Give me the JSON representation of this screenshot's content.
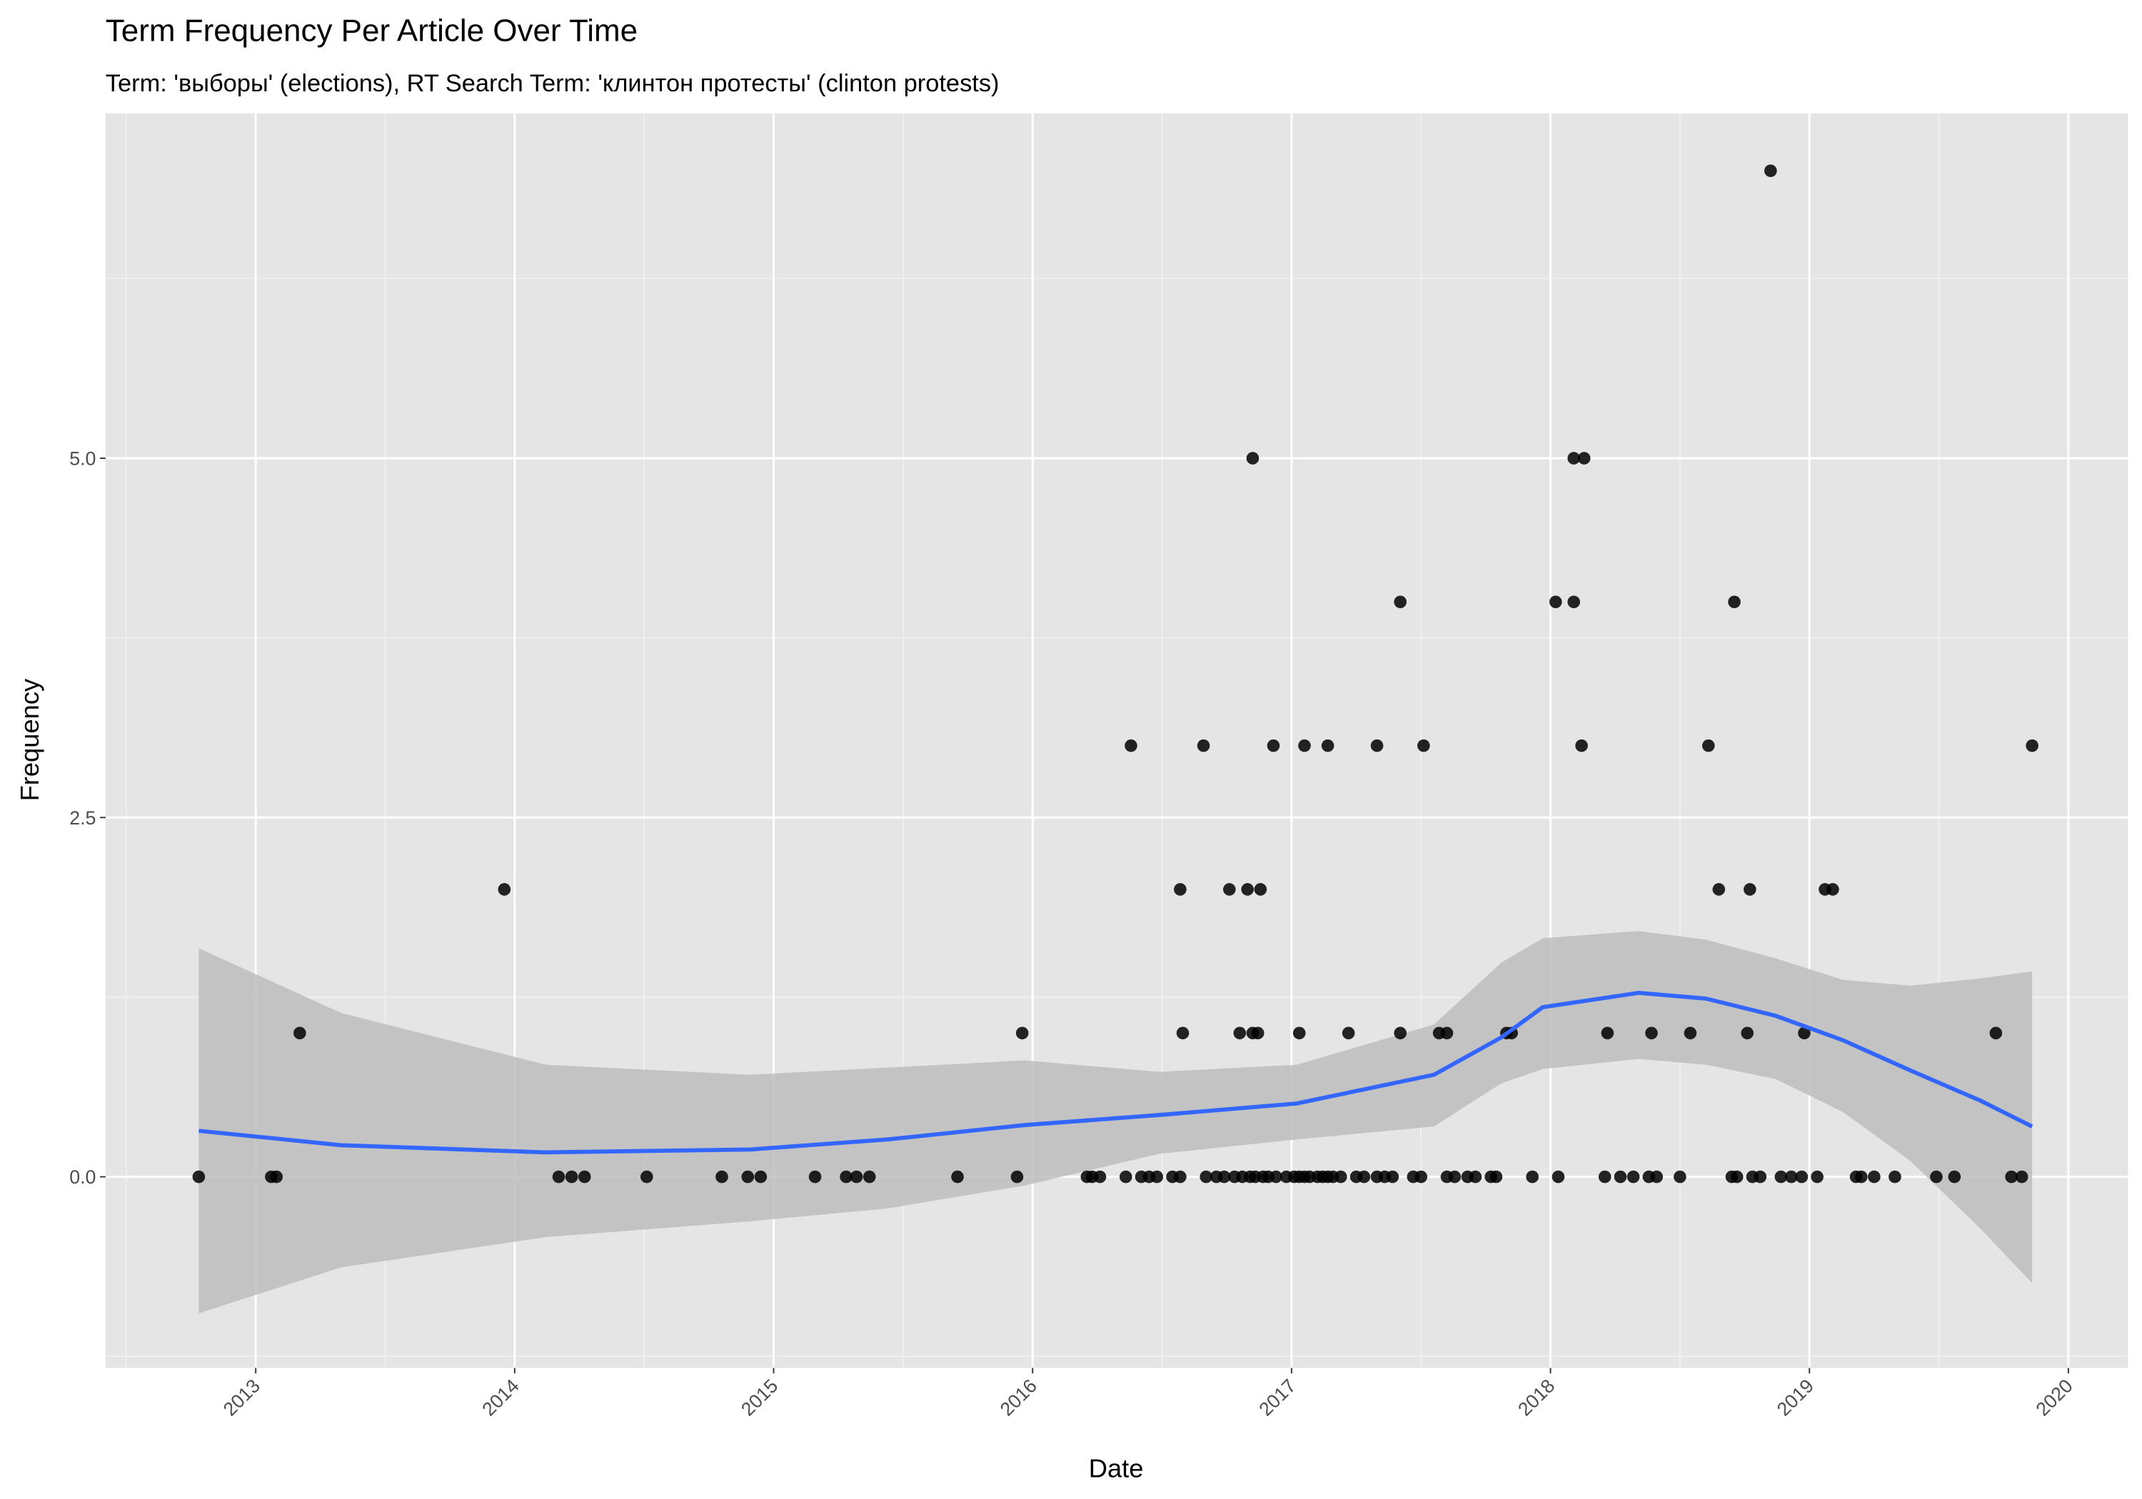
{
  "chart_data": {
    "type": "scatter",
    "title": "Term Frequency Per Article Over Time",
    "subtitle": "Term: 'выборы' (elections), RT Search Term: 'клинтон протесты' (clinton protests)",
    "x_label": "Date",
    "y_label": "Frequency",
    "color": "#000000",
    "x": [
      2012.78,
      2013.06,
      2013.08,
      2014.17,
      2014.22,
      2014.27,
      2014.51,
      2014.8,
      2014.9,
      2014.95,
      2015.16,
      2015.28,
      2015.32,
      2015.37,
      2015.71,
      2015.94,
      2016.21,
      2016.23,
      2016.26,
      2016.36,
      2016.42,
      2016.45,
      2016.48,
      2016.54,
      2016.57,
      2016.67,
      2016.71,
      2016.74,
      2016.78,
      2016.81,
      2016.84,
      2016.86,
      2016.89,
      2016.91,
      2016.94,
      2016.98,
      2017.01,
      2017.03,
      2017.05,
      2017.07,
      2017.1,
      2017.12,
      2017.14,
      2017.16,
      2017.19,
      2017.25,
      2017.28,
      2017.33,
      2017.36,
      2017.39,
      2017.47,
      2017.5,
      2017.6,
      2017.63,
      2017.68,
      2017.71,
      2017.77,
      2017.79,
      2017.93,
      2018.03,
      2018.21,
      2018.27,
      2018.32,
      2018.38,
      2018.41,
      2018.5,
      2018.7,
      2018.72,
      2018.78,
      2018.81,
      2018.89,
      2018.93,
      2018.97,
      2019.03,
      2019.18,
      2019.2,
      2019.25,
      2019.33,
      2019.49,
      2019.56,
      2019.78,
      2019.82,
      2013.17,
      2015.96,
      2016.58,
      2016.8,
      2016.85,
      2016.87,
      2017.03,
      2017.22,
      2017.42,
      2017.57,
      2017.6,
      2017.83,
      2017.85,
      2018.22,
      2018.39,
      2018.54,
      2018.76,
      2018.98,
      2019.72,
      2013.96,
      2016.57,
      2016.76,
      2016.83,
      2016.88,
      2018.65,
      2018.77,
      2019.06,
      2019.09,
      2016.38,
      2016.66,
      2016.93,
      2017.05,
      2017.14,
      2017.33,
      2017.51,
      2018.12,
      2018.61,
      2019.86,
      2017.42,
      2018.02,
      2018.09,
      2018.71,
      2016.85,
      2018.09,
      2018.13,
      2018.85
    ],
    "values": [
      0,
      0,
      0,
      0,
      0,
      0,
      0,
      0,
      0,
      0,
      0,
      0,
      0,
      0,
      0,
      0,
      0,
      0,
      0,
      0,
      0,
      0,
      0,
      0,
      0,
      0,
      0,
      0,
      0,
      0,
      0,
      0,
      0,
      0,
      0,
      0,
      0,
      0,
      0,
      0,
      0,
      0,
      0,
      0,
      0,
      0,
      0,
      0,
      0,
      0,
      0,
      0,
      0,
      0,
      0,
      0,
      0,
      0,
      0,
      0,
      0,
      0,
      0,
      0,
      0,
      0,
      0,
      0,
      0,
      0,
      0,
      0,
      0,
      0,
      0,
      0,
      0,
      0,
      0,
      0,
      0,
      0,
      1,
      1,
      1,
      1,
      1,
      1,
      1,
      1,
      1,
      1,
      1,
      1,
      1,
      1,
      1,
      1,
      1,
      1,
      1,
      2,
      2,
      2,
      2,
      2,
      2,
      2,
      2,
      2,
      3,
      3,
      3,
      3,
      3,
      3,
      3,
      3,
      3,
      3,
      4,
      4,
      4,
      4,
      5,
      5,
      5,
      7
    ],
    "smooth": {
      "color": "#3366ff",
      "band_color": "#bdbdbd",
      "x": [
        2012.78,
        2013.33,
        2014.12,
        2014.91,
        2015.44,
        2015.97,
        2016.49,
        2017.02,
        2017.55,
        2017.81,
        2017.97,
        2018.34,
        2018.6,
        2018.87,
        2019.13,
        2019.39,
        2019.66,
        2019.86
      ],
      "y": [
        0.32,
        0.22,
        0.17,
        0.19,
        0.26,
        0.36,
        0.43,
        0.51,
        0.71,
        0.97,
        1.18,
        1.28,
        1.24,
        1.12,
        0.95,
        0.74,
        0.53,
        0.35
      ],
      "lower": [
        -0.95,
        -0.63,
        -0.42,
        -0.31,
        -0.22,
        -0.06,
        0.16,
        0.26,
        0.35,
        0.65,
        0.75,
        0.82,
        0.78,
        0.68,
        0.45,
        0.11,
        -0.36,
        -0.74
      ],
      "upper": [
        1.59,
        1.14,
        0.78,
        0.71,
        0.76,
        0.81,
        0.73,
        0.78,
        1.06,
        1.49,
        1.66,
        1.71,
        1.65,
        1.52,
        1.37,
        1.33,
        1.38,
        1.43
      ]
    },
    "xlim": [
      2012.42,
      2020.23
    ],
    "xticks": [
      2013,
      2014,
      2015,
      2016,
      2017,
      2018,
      2019,
      2020
    ],
    "ylim": [
      -1.33,
      7.4
    ],
    "yticks": [
      {
        "value": 0,
        "label": "0.0"
      },
      {
        "value": 2.5,
        "label": "2.5"
      },
      {
        "value": 5,
        "label": "5.0"
      }
    ],
    "grid": true
  }
}
